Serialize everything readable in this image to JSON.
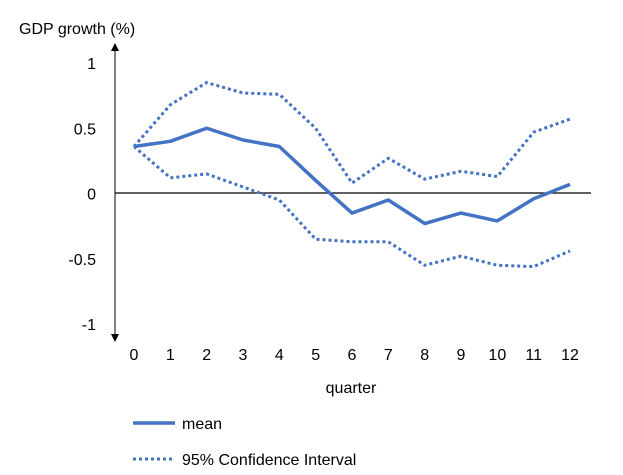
{
  "chart_data": {
    "type": "line",
    "title": "",
    "ylabel": "GDP growth (%)",
    "xlabel": "quarter",
    "x": [
      0,
      1,
      2,
      3,
      4,
      5,
      6,
      7,
      8,
      9,
      10,
      11,
      12
    ],
    "xlim": [
      0,
      12
    ],
    "ylim": [
      -1,
      1
    ],
    "y_ticks": [
      "1",
      "0.5",
      "0",
      "-0.5",
      "-1"
    ],
    "x_ticks": [
      "0",
      "1",
      "2",
      "3",
      "4",
      "5",
      "6",
      "7",
      "8",
      "9",
      "10",
      "11",
      "12"
    ],
    "series": [
      {
        "name": "mean",
        "style": "solid",
        "values": [
          0.36,
          0.4,
          0.5,
          0.41,
          0.36,
          0.1,
          -0.15,
          -0.05,
          -0.23,
          -0.15,
          -0.21,
          -0.04,
          0.07
        ]
      },
      {
        "name": "95% Confidence Interval",
        "style": "dotted",
        "band": "upper",
        "values": [
          0.36,
          0.68,
          0.85,
          0.77,
          0.76,
          0.5,
          0.08,
          0.27,
          0.11,
          0.17,
          0.13,
          0.47,
          0.57
        ]
      },
      {
        "name": "95% Confidence Interval",
        "style": "dotted",
        "band": "lower",
        "values": [
          0.36,
          0.12,
          0.15,
          0.05,
          -0.05,
          -0.35,
          -0.37,
          -0.37,
          -0.55,
          -0.48,
          -0.55,
          -0.56,
          -0.44
        ]
      }
    ],
    "legend": [
      {
        "label": "mean",
        "style": "solid"
      },
      {
        "label": "95% Confidence Interval",
        "style": "dotted"
      }
    ],
    "legend_position": "bottom-left",
    "grid": false,
    "colors": {
      "series": "#4472C4",
      "axis": "#000000"
    }
  }
}
